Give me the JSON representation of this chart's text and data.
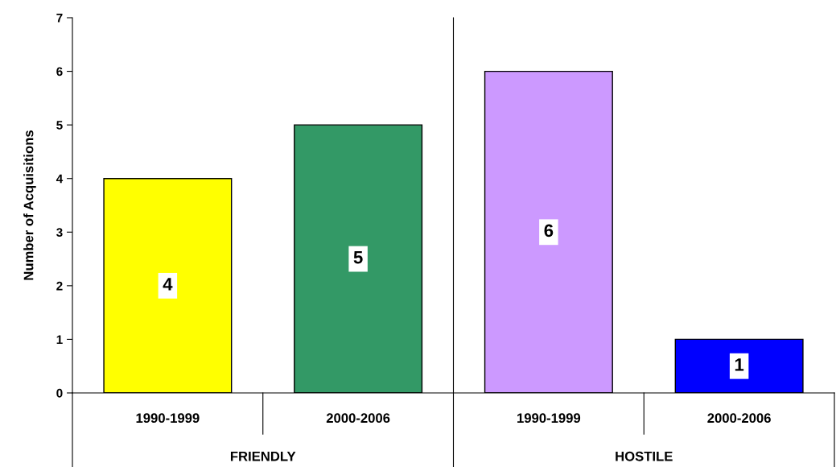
{
  "chart_data": {
    "type": "bar",
    "ylabel": "Number of Acquisitions",
    "categories": [
      "1990-1999",
      "2000-2006",
      "1990-1999",
      "2000-2006"
    ],
    "values": [
      4,
      5,
      6,
      1
    ],
    "colors": [
      "#ffff00",
      "#339966",
      "#cc99ff",
      "#0000ff"
    ],
    "ylim": [
      0,
      7
    ],
    "yticks": [
      0,
      1,
      2,
      3,
      4,
      5,
      6,
      7
    ],
    "data_labels": true,
    "annotations": [
      "FRIENDLY",
      "HOSTILE"
    ]
  }
}
